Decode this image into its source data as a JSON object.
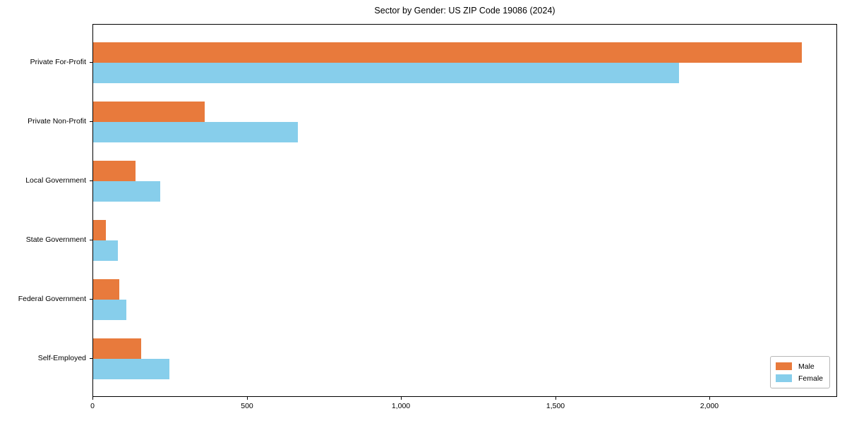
{
  "chart_data": {
    "type": "bar",
    "orientation": "horizontal",
    "title": "Sector by Gender: US ZIP Code 19086 (2024)",
    "categories": [
      "Private For-Profit",
      "Private Non-Profit",
      "Local Government",
      "State Government",
      "Federal Government",
      "Self-Employed"
    ],
    "series": [
      {
        "name": "Male",
        "color": "#E87A3C",
        "values": [
          2297,
          362,
          137,
          41,
          85,
          156
        ]
      },
      {
        "name": "Female",
        "color": "#87CEEB",
        "values": [
          1900,
          664,
          217,
          80,
          108,
          247
        ]
      }
    ],
    "xlabel": "",
    "ylabel": "",
    "xlim": [
      0,
      2414
    ],
    "xticks": [
      0,
      500,
      1000,
      1500,
      2000
    ],
    "xticklabels": [
      "0",
      "500",
      "1,000",
      "1,500",
      "2,000"
    ],
    "grid": false,
    "legend_position": "lower right",
    "colors": {
      "male": "#E87A3C",
      "female": "#87CEEB",
      "spine": "#000000",
      "background": "#ffffff"
    }
  }
}
